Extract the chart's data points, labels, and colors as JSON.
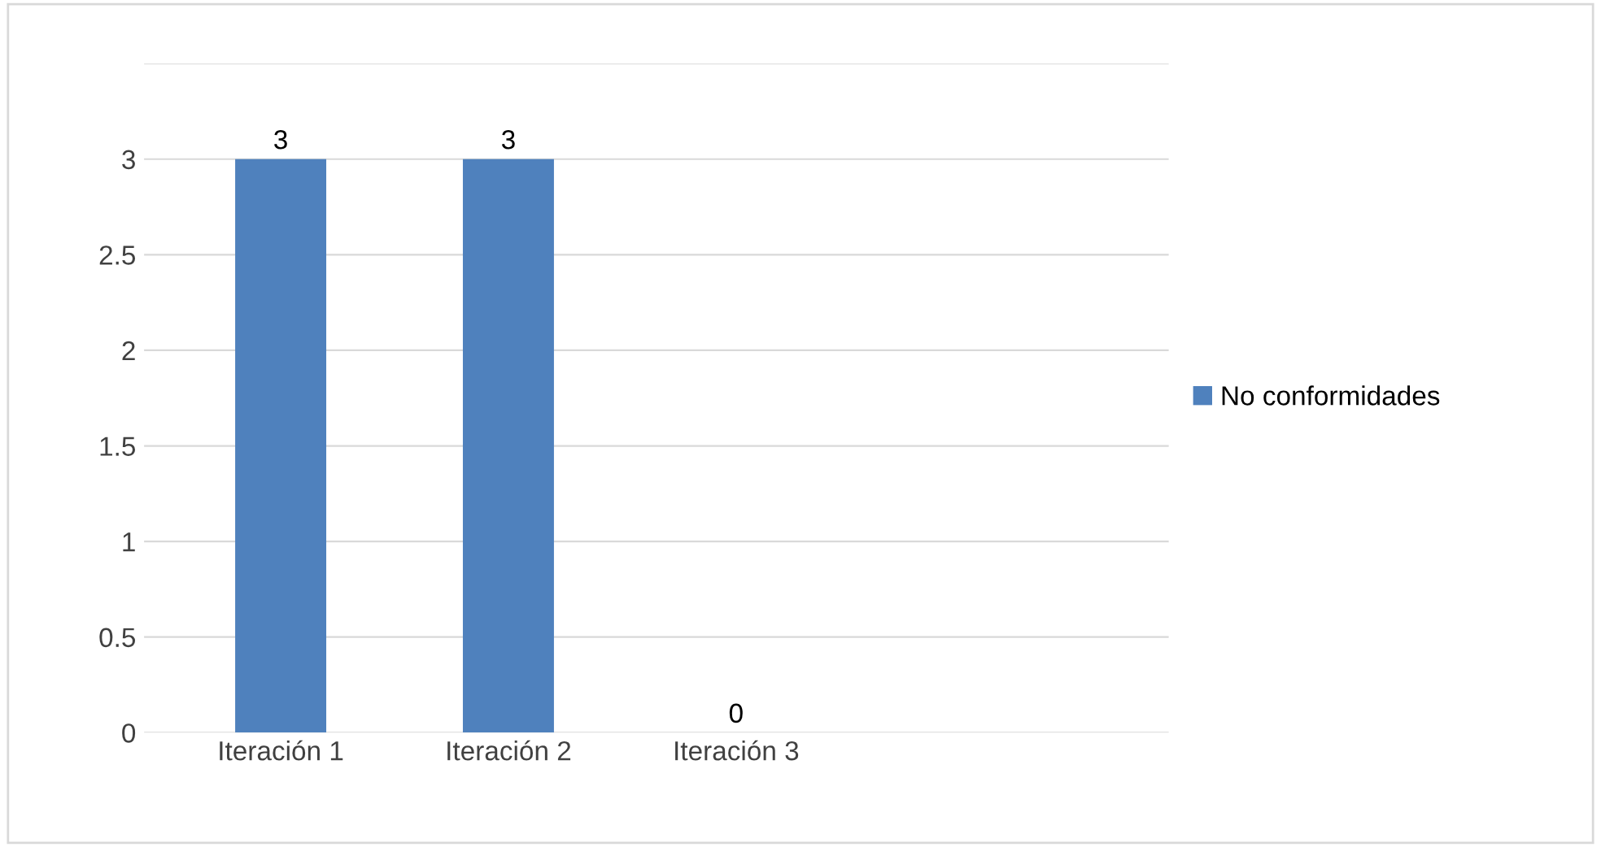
{
  "chart_data": {
    "type": "bar",
    "categories": [
      "Iteración 1",
      "Iteración 2",
      "Iteración 3"
    ],
    "series": [
      {
        "name": "No conformidades",
        "color": "#4f81bd",
        "values": [
          3,
          3,
          0
        ]
      }
    ],
    "ylim": [
      0,
      3.5
    ],
    "yticks": [
      0,
      0.5,
      1,
      1.5,
      2,
      2.5,
      3,
      {
        "value": 3.5,
        "label": null
      }
    ],
    "grid": "y",
    "legend": "right",
    "data_labels": true
  }
}
